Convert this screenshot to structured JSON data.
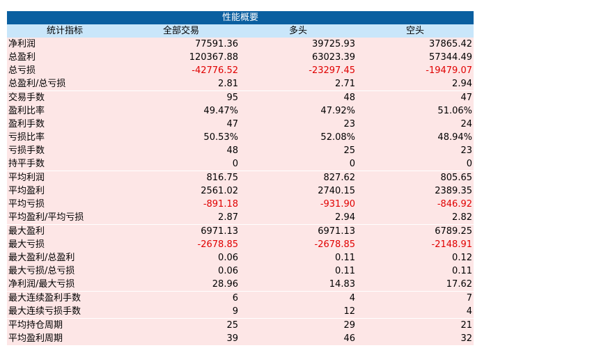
{
  "table": {
    "title": "性能概要",
    "header": [
      "统计指标",
      "全部交易",
      "多头",
      "空头"
    ],
    "sections": [
      [
        [
          "净利润",
          "77591.36",
          "39725.93",
          "37865.42"
        ],
        [
          "总盈利",
          "120367.88",
          "63023.39",
          "57344.49"
        ],
        [
          "总亏损",
          "-42776.52",
          "-23297.45",
          "-19479.07"
        ],
        [
          "总盈利/总亏损",
          "2.81",
          "2.71",
          "2.94"
        ]
      ],
      [
        [
          "交易手数",
          "95",
          "48",
          "47"
        ],
        [
          "盈利比率",
          "49.47%",
          "47.92%",
          "51.06%"
        ],
        [
          "盈利手数",
          "47",
          "23",
          "24"
        ],
        [
          "亏损比率",
          "50.53%",
          "52.08%",
          "48.94%"
        ],
        [
          "亏损手数",
          "48",
          "25",
          "23"
        ],
        [
          "持平手数",
          "0",
          "0",
          "0"
        ]
      ],
      [
        [
          "平均利润",
          "816.75",
          "827.62",
          "805.65"
        ],
        [
          "平均盈利",
          "2561.02",
          "2740.15",
          "2389.35"
        ],
        [
          "平均亏损",
          "-891.18",
          "-931.90",
          "-846.92"
        ],
        [
          "平均盈利/平均亏损",
          "2.87",
          "2.94",
          "2.82"
        ]
      ],
      [
        [
          "最大盈利",
          "6971.13",
          "6971.13",
          "6789.25"
        ],
        [
          "最大亏损",
          "-2678.85",
          "-2678.85",
          "-2148.91"
        ],
        [
          "最大盈利/总盈利",
          "0.06",
          "0.11",
          "0.12"
        ],
        [
          "最大亏损/总亏损",
          "0.06",
          "0.11",
          "0.11"
        ],
        [
          "净利润/最大亏损",
          "28.96",
          "14.83",
          "17.62"
        ]
      ],
      [
        [
          "最大连续盈利手数",
          "6",
          "4",
          "7"
        ],
        [
          "最大连续亏损手数",
          "9",
          "12",
          "4"
        ]
      ],
      [
        [
          "平均持仓周期",
          "25",
          "29",
          "21"
        ],
        [
          "平均盈利周期",
          "39",
          "46",
          "32"
        ]
      ]
    ]
  }
}
